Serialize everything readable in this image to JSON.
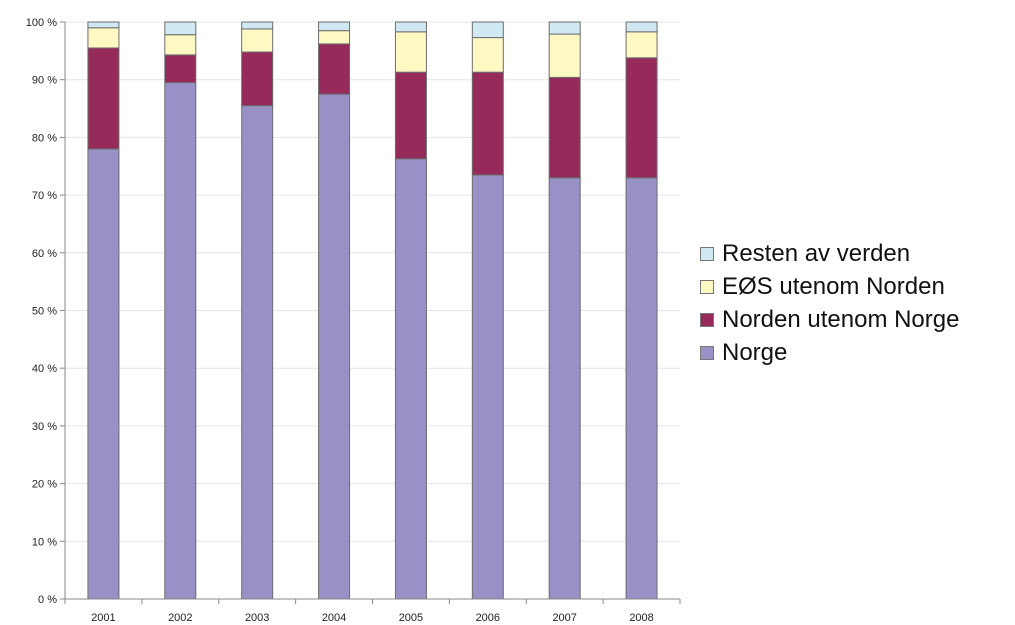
{
  "chart_data": {
    "type": "bar",
    "stacked": true,
    "categories": [
      "2001",
      "2002",
      "2003",
      "2004",
      "2005",
      "2006",
      "2007",
      "2008"
    ],
    "series": [
      {
        "name": "Norge",
        "color": "#9891c6",
        "values": [
          78,
          89.5,
          85.5,
          87.5,
          76.3,
          73.5,
          73,
          73
        ]
      },
      {
        "name": "Norden utenom Norge",
        "color": "#962a5a",
        "values": [
          17.5,
          4.8,
          9.3,
          8.7,
          15,
          17.8,
          17.4,
          20.8
        ]
      },
      {
        "name": "EØS utenom Norden",
        "color": "#fef8c3",
        "values": [
          3.5,
          3.5,
          4,
          2.3,
          7,
          6,
          7.5,
          4.5
        ]
      },
      {
        "name": "Resten av verden",
        "color": "#cfe8f2",
        "values": [
          1,
          2.2,
          1.2,
          1.5,
          1.7,
          2.7,
          2.1,
          1.7
        ]
      }
    ],
    "yticks": [
      "0 %",
      "10 %",
      "20 %",
      "30 %",
      "40 %",
      "50 %",
      "60 %",
      "70 %",
      "80 %",
      "90 %",
      "100 %"
    ],
    "ylim": [
      0,
      100
    ],
    "grid": true,
    "legend_position": "right"
  }
}
